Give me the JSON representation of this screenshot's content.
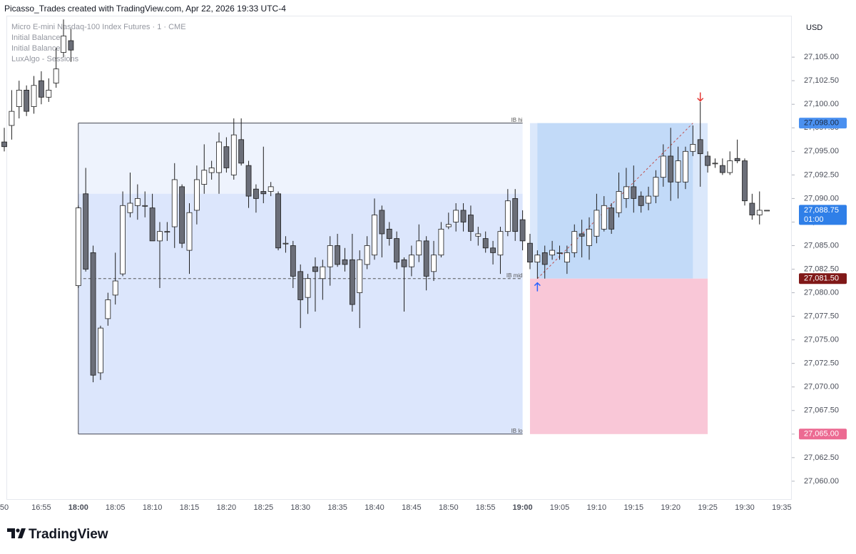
{
  "chart_data": {
    "type": "candlestick",
    "header": "Picasso_Trades created with TradingView.com, Apr 22, 2026 19:33 UTC-4",
    "legend": [
      "Micro E-mini Nasdaq-100 Index Futures · 1 · CME",
      "Initial Balance",
      "Initial Balance",
      "LuxAlgo - Sessions"
    ],
    "currency": "USD",
    "brand": "TradingView",
    "up_color": "#ffffff",
    "down_color": "#6b6e78",
    "outline_color": "#1e1e1e",
    "categories": [
      "16:50",
      "16:51",
      "16:52",
      "16:53",
      "16:54",
      "16:55",
      "16:56",
      "16:57",
      "16:58",
      "16:59",
      "18:00",
      "18:01",
      "18:02",
      "18:03",
      "18:04",
      "18:05",
      "18:06",
      "18:07",
      "18:08",
      "18:09",
      "18:10",
      "18:11",
      "18:12",
      "18:13",
      "18:14",
      "18:15",
      "18:16",
      "18:17",
      "18:18",
      "18:19",
      "18:20",
      "18:21",
      "18:22",
      "18:23",
      "18:24",
      "18:25",
      "18:26",
      "18:27",
      "18:28",
      "18:29",
      "18:30",
      "18:31",
      "18:32",
      "18:33",
      "18:34",
      "18:35",
      "18:36",
      "18:37",
      "18:38",
      "18:39",
      "18:40",
      "18:41",
      "18:42",
      "18:43",
      "18:44",
      "18:45",
      "18:46",
      "18:47",
      "18:48",
      "18:49",
      "18:50",
      "18:51",
      "18:52",
      "18:53",
      "18:54",
      "18:55",
      "18:56",
      "18:57",
      "18:58",
      "18:59",
      "19:00",
      "19:01",
      "19:02",
      "19:03",
      "19:04",
      "19:05",
      "19:06",
      "19:07",
      "19:08",
      "19:09",
      "19:10",
      "19:11",
      "19:12",
      "19:13",
      "19:14",
      "19:15",
      "19:16",
      "19:17",
      "19:18",
      "19:19",
      "19:20",
      "19:21",
      "19:22",
      "19:23",
      "19:24",
      "19:25",
      "19:26",
      "19:27",
      "19:28",
      "19:29",
      "19:30",
      "19:31",
      "19:32",
      "19:33",
      "19:34",
      "19:35"
    ],
    "open": [
      27096,
      27097.75,
      27099.75,
      27101.5,
      27099.75,
      27102.5,
      27100.75,
      27102.25,
      27105.5,
      27106.75,
      27080.75,
      27090.5,
      27084.25,
      27071.5,
      27077.25,
      27079.75,
      27082,
      27088.5,
      27089.25,
      27089.25,
      27089,
      27085.5,
      27086.5,
      27087,
      27091.25,
      27084.5,
      27088.75,
      27091.5,
      27092.75,
      27092.75,
      27095.5,
      27092.5,
      27096.25,
      27093.5,
      27091,
      27090.75,
      27090.75,
      27090.5,
      27085.25,
      27085,
      27082.25,
      27079.5,
      27082.75,
      27081.5,
      27082.75,
      27085,
      27083.5,
      27083.5,
      27080,
      27083,
      27084,
      27088.75,
      27086.75,
      27085.75,
      27083.5,
      27082.75,
      27084,
      27085.5,
      27082.25,
      27084,
      27087,
      27087.5,
      27088.75,
      27088.25,
      27086,
      27085.75,
      27084.75,
      27084,
      27086.5,
      27090,
      27087.75,
      27085.25,
      27083.25,
      27084.25,
      27084,
      27084.25,
      27083.25,
      27084.25,
      27086.25,
      27085,
      27086,
      27086.75,
      27089,
      27088.5,
      27090,
      27091.25,
      27090.25,
      27089.5,
      27090.25,
      27092.25,
      27094.5,
      27091.75,
      27091.75,
      27095,
      27096.25,
      27094.5,
      27093.75,
      27093.5,
      27092.75,
      27094.25,
      27094,
      27089.5,
      27088.25,
      27088.75,
      null,
      null
    ],
    "high": [
      27097.5,
      27101.5,
      27102.5,
      27102,
      27103,
      27103.5,
      27102.75,
      27106,
      27109,
      27108,
      27089.25,
      27093.25,
      27085,
      27076.5,
      27080,
      27084.25,
      27090.75,
      27092.75,
      27091.5,
      27090.75,
      27090.5,
      27087.5,
      27087.5,
      27093.75,
      27091.5,
      27089.5,
      27093.5,
      27095.75,
      27094,
      27097,
      27096.5,
      27098.5,
      27098.5,
      27094,
      27091.5,
      27095.5,
      27091.75,
      27090.75,
      27086,
      27085.5,
      27083,
      27082,
      27083.75,
      27083.5,
      27086,
      27086.25,
      27084.75,
      27086.25,
      27084.5,
      27086,
      27090,
      27089.25,
      27087.5,
      27086.5,
      27083.75,
      27085,
      27087.25,
      27086,
      27085.5,
      27087.5,
      27088.5,
      27089.5,
      27089.5,
      27089.25,
      27087,
      27086.5,
      27085.5,
      27087,
      27091,
      27091,
      27088.75,
      27086.25,
      27084.5,
      27085,
      27085.5,
      27085,
      27085,
      27087.25,
      27087.75,
      27088,
      27090.5,
      27090.25,
      27089.5,
      27092.75,
      27093.25,
      27093.5,
      27090.75,
      27091.25,
      27093,
      27095.75,
      27097.5,
      27095.5,
      27095.5,
      27097.75,
      27100.25,
      27095,
      27094.25,
      27094.25,
      27095,
      27096.25,
      27094.25,
      27090.5,
      27090.75,
      27088.75,
      null,
      null
    ],
    "low": [
      27095,
      27096.25,
      27098.5,
      27098.75,
      27099,
      27100,
      27100.25,
      27101.75,
      27105,
      27104.5,
      27080.5,
      27082.25,
      27070.5,
      27070.75,
      27076.5,
      27078.75,
      27081.75,
      27088,
      27087.75,
      27088,
      27085.5,
      27080.5,
      27085.5,
      27084.75,
      27084.75,
      27082,
      27087.25,
      27090.5,
      27092,
      27090.5,
      27092.75,
      27092,
      27093.5,
      27089,
      27088.5,
      27089.5,
      27090.25,
      27084.5,
      27084.25,
      27080.5,
      27076.25,
      27077.75,
      27078,
      27079.25,
      27080.75,
      27082.75,
      27082.25,
      27078,
      27076.25,
      27082.5,
      27083.5,
      27083.75,
      27085,
      27082.5,
      27078,
      27081.75,
      27083.25,
      27080.25,
      27081.25,
      27083.75,
      27086.75,
      27086.5,
      27086.5,
      27085.5,
      27085,
      27084.25,
      27083,
      27082,
      27086,
      27085.5,
      27084.5,
      27082.5,
      27081.5,
      27081.5,
      27083.5,
      27083.5,
      27082,
      27083.75,
      27083.75,
      27083.5,
      27085.25,
      27086.5,
      27086.25,
      27088,
      27089,
      27088.5,
      27088.5,
      27088.75,
      27089.5,
      27091.25,
      27089.75,
      27090,
      27091,
      27094.5,
      27091.25,
      27092.75,
      27093.25,
      27092.5,
      27092.5,
      27093.75,
      27089.25,
      27087.75,
      27087.25,
      27088.75,
      null,
      null
    ],
    "close": [
      27095.5,
      27099.25,
      27101.5,
      27099.25,
      27102,
      27100.75,
      27101.5,
      27103.75,
      27107.25,
      27105.75,
      27089,
      27082.5,
      27071.25,
      27076.25,
      27079.25,
      27081.25,
      27089.25,
      27089.5,
      27090,
      27089.25,
      27085.5,
      27086.5,
      27086.5,
      27092,
      27085.25,
      27088.5,
      27092,
      27093,
      27093.25,
      27096,
      27093.25,
      27096.75,
      27093.75,
      27090.25,
      27090,
      27090.5,
      27091.25,
      27084.75,
      27085.25,
      27081.75,
      27079.25,
      27081.5,
      27082.25,
      27082.75,
      27085,
      27083,
      27083,
      27078.75,
      27083.5,
      27085,
      27088.25,
      27086.25,
      27085.75,
      27083.25,
      27082.75,
      27084,
      27085.5,
      27081.75,
      27084,
      27086.75,
      27087.25,
      27088.75,
      27087.5,
      27086.5,
      27086.25,
      27084.75,
      27084.25,
      27086.5,
      27089.75,
      27086.5,
      27085.5,
      27083.25,
      27084,
      27083,
      27084.5,
      27084.25,
      27084.25,
      27086.5,
      27086,
      27086.75,
      27088.75,
      27089.25,
      27086.75,
      27090.75,
      27091.25,
      27090,
      27089.25,
      27090.25,
      27092.25,
      27094.5,
      27091.75,
      27094,
      27095,
      27095.75,
      27094.75,
      27093.5,
      27093.75,
      27092.75,
      27094,
      27094,
      27089.75,
      27088.25,
      27088.75,
      27088.75,
      null,
      null
    ],
    "xticks": [
      {
        "value": "16:50",
        "label": "50"
      },
      "16:55",
      "18:00",
      "18:05",
      "18:10",
      "18:15",
      "18:20",
      "18:25",
      "18:30",
      "18:35",
      "18:40",
      "18:45",
      "18:50",
      "18:55",
      "19:00",
      "19:05",
      "19:10",
      "19:15",
      "19:20",
      "19:25",
      "19:30",
      "19:35"
    ],
    "xticks_bold": [
      "18:00",
      "19:00"
    ],
    "ylim": [
      27058.1,
      27109.4
    ],
    "yticks": [
      {
        "value": 27060,
        "label": "27,060.00"
      },
      {
        "value": 27062.5,
        "label": "27,062.50"
      },
      {
        "value": 27065,
        "label": "27,065.00"
      },
      {
        "value": 27067.5,
        "label": "27,067.50"
      },
      {
        "value": 27070,
        "label": "27,070.00"
      },
      {
        "value": 27072.5,
        "label": "27,072.50"
      },
      {
        "value": 27075,
        "label": "27,075.00"
      },
      {
        "value": 27077.5,
        "label": "27,077.50"
      },
      {
        "value": 27080,
        "label": "27,080.00"
      },
      {
        "value": 27082.5,
        "label": "27,082.50"
      },
      {
        "value": 27085,
        "label": "27,085.00"
      },
      {
        "value": 27087.5,
        "label": "27,087.50"
      },
      {
        "value": 27090,
        "label": "27,090.00"
      },
      {
        "value": 27092.5,
        "label": "27,092.50"
      },
      {
        "value": 27095,
        "label": "27,095.00"
      },
      {
        "value": 27097.5,
        "label": "27,097.50"
      },
      {
        "value": 27100,
        "label": "27,100.00"
      },
      {
        "value": 27102.5,
        "label": "27,102.50"
      },
      {
        "value": 27105,
        "label": "27,105.00"
      }
    ],
    "boxes": [
      {
        "start": "18:00",
        "end": "19:00",
        "top": 27098,
        "bottom": 27065,
        "color": "#eef3fd"
      },
      {
        "start": "18:00",
        "end": "19:00",
        "top": 27090.5,
        "bottom": 27065,
        "color": "#dce6fc"
      },
      {
        "start": "19:01",
        "end": "19:25",
        "top": 27098,
        "bottom": 27081.5,
        "color": "#dbe8fb"
      },
      {
        "start": "19:02",
        "end": "19:23",
        "top": 27098,
        "bottom": 27081.5,
        "color": "#c2daf8"
      },
      {
        "start": "19:01",
        "end": "19:25",
        "top": 27081.5,
        "bottom": 27065,
        "color": "#f9c7d7"
      }
    ],
    "levels": [
      {
        "name": "IB hi",
        "value": 27098,
        "start": "18:00",
        "end": "19:00",
        "dashed": false
      },
      {
        "name": "IB mid",
        "value": 27081.5,
        "start": "18:00",
        "end": "19:00",
        "dashed": true
      },
      {
        "name": "IB lo",
        "value": 27065,
        "start": "18:00",
        "end": "19:00",
        "dashed": false
      }
    ],
    "trend_line": {
      "start": "19:02",
      "end": "19:23",
      "from": 27081.5,
      "to": 27098,
      "color": "#c0504d"
    },
    "arrows": [
      {
        "at": "19:02",
        "value": 27080.6,
        "direction": "up",
        "color": "#2962ff"
      },
      {
        "at": "19:24",
        "value": 27100.8,
        "direction": "down",
        "color": "#e53935"
      }
    ],
    "price_labels": [
      {
        "value": 27098,
        "label": "27,098.00",
        "color": "#4a90f0",
        "text_color": "#1b2b44"
      },
      {
        "value": 27088.75,
        "label": "27,088.75",
        "countdown": "01:00",
        "color": "#2f7fe8",
        "text_color": "#ffffff"
      },
      {
        "value": 27081.5,
        "label": "27,081.50",
        "color": "#801818",
        "text_color": "#ffffff"
      },
      {
        "value": 27065,
        "label": "27,065.00",
        "color": "#ec6a92",
        "text_color": "#ffffff"
      }
    ]
  }
}
